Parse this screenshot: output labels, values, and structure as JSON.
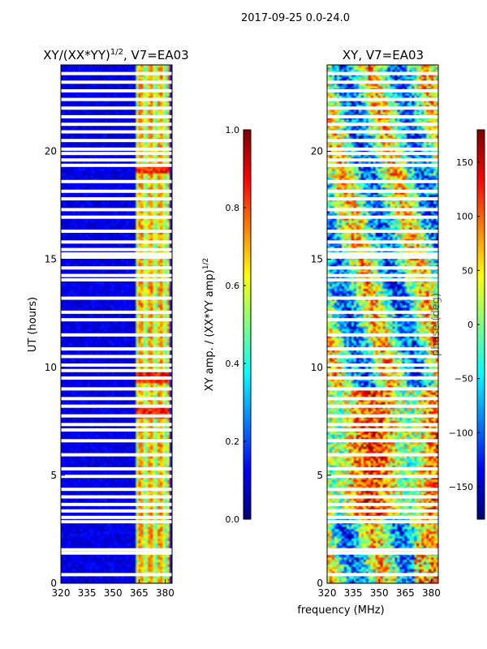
{
  "figure": {
    "suptitle": "2017-09-25 0.0-24.0",
    "xlabel": "frequency (MHz)"
  },
  "colors": {
    "jet": [
      "#00007f",
      "#0000ff",
      "#007fff",
      "#00ffff",
      "#7fff7f",
      "#ffff00",
      "#ff7f00",
      "#ff0000",
      "#7f0000"
    ],
    "gap": "#ffffff",
    "axis": "#000000"
  },
  "chart_data": [
    {
      "type": "heatmap",
      "title_main": "XY/(XX*YY)",
      "title_exp": "1/2",
      "title_rest": ", V7=EA03",
      "ylabel": "UT (hours)",
      "xlim": [
        320,
        384
      ],
      "ylim": [
        0,
        24
      ],
      "xticks": [
        "320",
        "335",
        "350",
        "365",
        "380"
      ],
      "xtick_values": [
        320,
        335,
        350,
        365,
        380
      ],
      "yticks": [
        "0",
        "5",
        "10",
        "15",
        "20"
      ],
      "ytick_values": [
        0,
        5,
        10,
        15,
        20
      ],
      "colorbar": {
        "label_main": "XY amp. / (XX*YY amp)",
        "label_exp": "1/2",
        "range": [
          0.0,
          1.0
        ],
        "ticks": [
          "0.0",
          "0.2",
          "0.4",
          "0.6",
          "0.8",
          "1.0"
        ],
        "tick_values": [
          0.0,
          0.2,
          0.4,
          0.6,
          0.8,
          1.0
        ]
      },
      "gaps_ut_hours": [
        0.4,
        1.4,
        1.55,
        2.85,
        3.05,
        3.35,
        3.65,
        4.0,
        4.35,
        4.95,
        5.3,
        5.95,
        6.6,
        7.1,
        7.35,
        7.75,
        8.2,
        8.55,
        9.0,
        9.5,
        9.85,
        10.1,
        10.5,
        10.85,
        11.5,
        12.2,
        12.55,
        13.2,
        14.05,
        14.25,
        14.6,
        15.1,
        15.25,
        15.45,
        15.8,
        16.3,
        16.95,
        17.3,
        17.8,
        18.15,
        18.6,
        19.35,
        19.6,
        19.9,
        20.1,
        20.5,
        20.9,
        21.25,
        21.6,
        22.0,
        22.4,
        22.8,
        23.2,
        23.6
      ],
      "bright_band_mhz": [
        363,
        382
      ],
      "hot_patches_ut_hours": [
        [
          7.6,
          8.2
        ],
        [
          9.3,
          9.8
        ],
        [
          19.0,
          19.4
        ]
      ]
    },
    {
      "type": "heatmap",
      "title_main": "XY, V7=EA03",
      "xlim": [
        320,
        384
      ],
      "ylim": [
        0,
        24
      ],
      "xticks": [
        "320",
        "335",
        "350",
        "365",
        "380"
      ],
      "xtick_values": [
        320,
        335,
        350,
        365,
        380
      ],
      "yticks": [
        "0",
        "5",
        "10",
        "15",
        "20"
      ],
      "ytick_values": [
        0,
        5,
        10,
        15,
        20
      ],
      "colorbar": {
        "label": "phase (deg)",
        "range": [
          -180,
          180
        ],
        "ticks": [
          "−150",
          "−100",
          "−50",
          "0",
          "50",
          "100",
          "150"
        ],
        "tick_values": [
          -150,
          -100,
          -50,
          0,
          50,
          100,
          150
        ]
      },
      "gaps_ut_hours": [
        0.4,
        1.4,
        1.55,
        2.85,
        3.05,
        3.35,
        3.65,
        4.0,
        4.35,
        4.95,
        5.3,
        5.95,
        6.6,
        7.1,
        7.35,
        7.75,
        8.2,
        8.55,
        9.0,
        9.5,
        9.85,
        10.1,
        10.5,
        10.85,
        11.5,
        12.2,
        12.55,
        13.2,
        14.05,
        14.25,
        14.6,
        15.1,
        15.25,
        15.45,
        15.8,
        16.3,
        16.95,
        17.3,
        17.8,
        18.15,
        18.6,
        19.35,
        19.6,
        19.9,
        20.1,
        20.5,
        20.9,
        21.25,
        21.6,
        22.0,
        22.4,
        22.8,
        23.2,
        23.6
      ]
    }
  ]
}
